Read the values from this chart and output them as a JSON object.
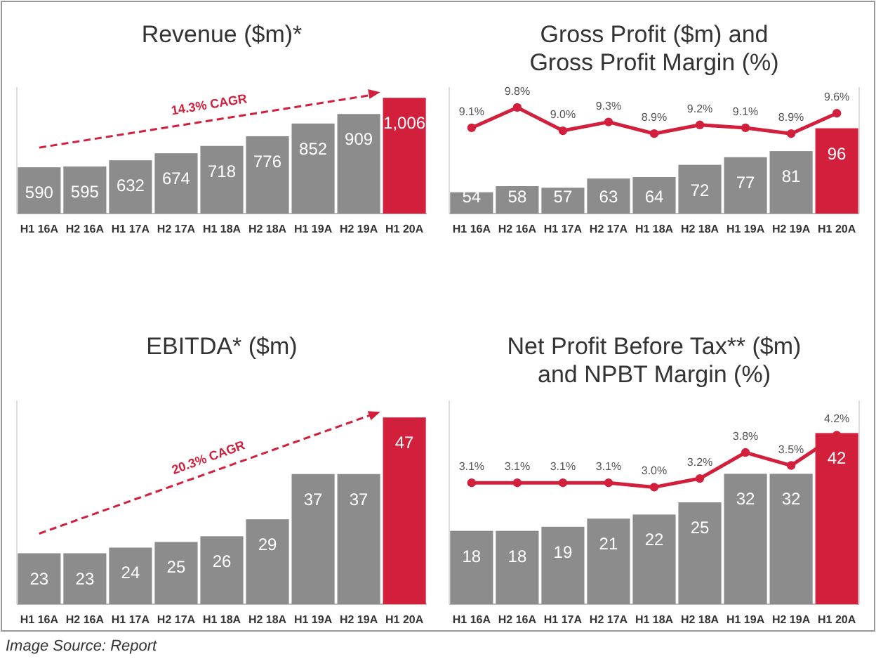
{
  "chart_data": [
    {
      "type": "bar",
      "title": "Revenue ($m)*",
      "categories": [
        "H1 16A",
        "H2 16A",
        "H1 17A",
        "H2 17A",
        "H1 18A",
        "H2 18A",
        "H1 19A",
        "H2 19A",
        "H1 20A"
      ],
      "ylim": [
        313,
        1070
      ],
      "tick_labels": "x",
      "annotations": [
        "14.3% CAGR"
      ],
      "series": [
        {
          "type": "bar",
          "values": [
            590,
            595,
            632,
            674,
            718,
            776,
            852,
            909,
            1006
          ],
          "value_labels": [
            "590",
            "595",
            "632",
            "674",
            "718",
            "776",
            "852",
            "909",
            "1,006"
          ],
          "colors": [
            "#8c8c8c",
            "#8c8c8c",
            "#8c8c8c",
            "#8c8c8c",
            "#8c8c8c",
            "#8c8c8c",
            "#8c8c8c",
            "#8c8c8c",
            "#d21f3c"
          ]
        }
      ]
    },
    {
      "type": "bar",
      "title": "Gross Profit ($m) and\nGross Profit Margin (%)",
      "categories": [
        "H1 16A",
        "H2 16A",
        "H1 17A",
        "H2 17A",
        "H1 18A",
        "H2 18A",
        "H1 19A",
        "H2 19A",
        "H1 20A"
      ],
      "ylim": [
        40,
        123
      ],
      "y2lim": [
        6.15,
        10.5
      ],
      "tick_labels": "x",
      "marker": "circle",
      "series": [
        {
          "type": "bar",
          "values": [
            54,
            58,
            57,
            63,
            64,
            72,
            77,
            81,
            96
          ],
          "value_labels": [
            "54",
            "58",
            "57",
            "63",
            "64",
            "72",
            "77",
            "81",
            "96"
          ],
          "colors": [
            "#8c8c8c",
            "#8c8c8c",
            "#8c8c8c",
            "#8c8c8c",
            "#8c8c8c",
            "#8c8c8c",
            "#8c8c8c",
            "#8c8c8c",
            "#d21f3c"
          ]
        },
        {
          "type": "line",
          "axis": "y2",
          "color": "#d21f3c",
          "values": [
            9.1,
            9.8,
            9.0,
            9.3,
            8.9,
            9.2,
            9.1,
            8.9,
            9.6
          ],
          "value_labels": [
            "9.1%",
            "9.8%",
            "9.0%",
            "9.3%",
            "8.9%",
            "9.2%",
            "9.1%",
            "8.9%",
            "9.6%"
          ]
        }
      ]
    },
    {
      "type": "bar",
      "title": "EBITDA* ($m)",
      "categories": [
        "H1 16A",
        "H2 16A",
        "H1 17A",
        "H2 17A",
        "H1 18A",
        "H2 18A",
        "H1 19A",
        "H2 19A",
        "H1 20A"
      ],
      "ylim": [
        14,
        50
      ],
      "tick_labels": "x",
      "annotations": [
        "20.3% CAGR"
      ],
      "series": [
        {
          "type": "bar",
          "values": [
            23,
            23,
            24,
            25,
            26,
            29,
            37,
            37,
            47
          ],
          "value_labels": [
            "23",
            "23",
            "24",
            "25",
            "26",
            "29",
            "37",
            "37",
            "47"
          ],
          "colors": [
            "#8c8c8c",
            "#8c8c8c",
            "#8c8c8c",
            "#8c8c8c",
            "#8c8c8c",
            "#8c8c8c",
            "#8c8c8c",
            "#8c8c8c",
            "#d21f3c"
          ]
        }
      ]
    },
    {
      "type": "bar",
      "title": "Net Profit Before Tax** ($m)\nand NPBT Margin (%)",
      "categories": [
        "H1 16A",
        "H2 16A",
        "H1 17A",
        "H2 17A",
        "H1 18A",
        "H2 18A",
        "H1 19A",
        "H2 19A",
        "H1 20A"
      ],
      "ylim": [
        0,
        50
      ],
      "y2lim": [
        0.3,
        5.0
      ],
      "tick_labels": "x",
      "marker": "circle",
      "series": [
        {
          "type": "bar",
          "values": [
            18,
            18,
            19,
            21,
            22,
            25,
            32,
            32,
            42
          ],
          "value_labels": [
            "18",
            "18",
            "19",
            "21",
            "22",
            "25",
            "32",
            "32",
            "42"
          ],
          "colors": [
            "#8c8c8c",
            "#8c8c8c",
            "#8c8c8c",
            "#8c8c8c",
            "#8c8c8c",
            "#8c8c8c",
            "#8c8c8c",
            "#8c8c8c",
            "#d21f3c"
          ]
        },
        {
          "type": "line",
          "axis": "y2",
          "color": "#d21f3c",
          "values": [
            3.1,
            3.1,
            3.1,
            3.1,
            3.0,
            3.2,
            3.8,
            3.5,
            4.2
          ],
          "value_labels": [
            "3.1%",
            "3.1%",
            "3.1%",
            "3.1%",
            "3.0%",
            "3.2%",
            "3.8%",
            "3.5%",
            "4.2%"
          ]
        }
      ]
    },
    {
      "type": "other",
      "annotations": [
        "Image Source: Report"
      ]
    }
  ]
}
